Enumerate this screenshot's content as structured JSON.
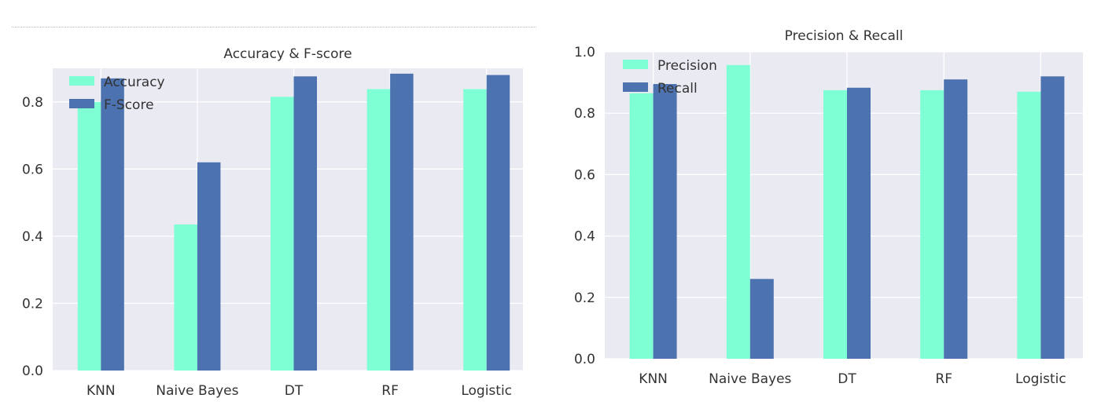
{
  "chart_data": [
    {
      "type": "bar",
      "title": "Accuracy & F-score",
      "categories": [
        "KNN",
        "Naive Bayes",
        "DT",
        "RF",
        "Logistic"
      ],
      "series": [
        {
          "name": "Accuracy",
          "values": [
            0.8,
            0.435,
            0.815,
            0.838,
            0.838
          ],
          "color": "#7fffd4"
        },
        {
          "name": "F-Score",
          "values": [
            0.87,
            0.62,
            0.876,
            0.884,
            0.88
          ],
          "color": "#4c72b0"
        }
      ],
      "xlabel": "",
      "ylabel": "",
      "ylim": [
        0,
        0.9
      ],
      "yticks": [
        0.0,
        0.2,
        0.4,
        0.6,
        0.8
      ],
      "ytick_labels": [
        "0.0",
        "0.2",
        "0.4",
        "0.6",
        "0.8"
      ],
      "grid": true,
      "legend": "top-left"
    },
    {
      "type": "bar",
      "title": "Precision & Recall",
      "categories": [
        "KNN",
        "Naive Bayes",
        "DT",
        "RF",
        "Logistic"
      ],
      "series": [
        {
          "name": "Precision",
          "values": [
            0.865,
            0.957,
            0.875,
            0.875,
            0.87
          ],
          "color": "#7fffd4"
        },
        {
          "name": "Recall",
          "values": [
            0.895,
            0.26,
            0.883,
            0.91,
            0.92
          ],
          "color": "#4c72b0"
        }
      ],
      "xlabel": "",
      "ylabel": "",
      "ylim": [
        0,
        1.0
      ],
      "yticks": [
        0.0,
        0.2,
        0.4,
        0.6,
        0.8,
        1.0
      ],
      "ytick_labels": [
        "0.0",
        "0.2",
        "0.4",
        "0.6",
        "0.8",
        "1.0"
      ],
      "grid": true,
      "legend": "top-left"
    }
  ]
}
